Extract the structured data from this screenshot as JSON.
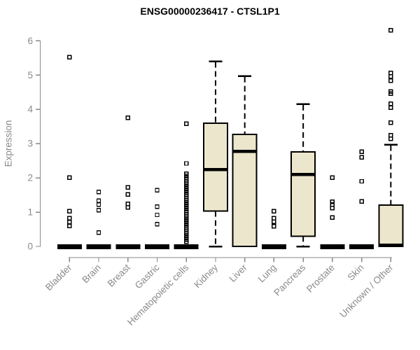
{
  "chart_data": {
    "type": "boxplot",
    "title": "ENSG00000236417 - CTSL1P1",
    "ylabel": "Expression",
    "xlabel": "",
    "ylim": [
      0,
      6
    ],
    "yticks": [
      0,
      1,
      2,
      3,
      4,
      5,
      6
    ],
    "grid": false,
    "legend": false,
    "colors": {
      "box_fill": "#ece6cc",
      "box_stroke": "#000000",
      "axis": "#8a8a8a",
      "tick_label": "#8a8a8a",
      "title": "#000000"
    },
    "categories": [
      "Bladder",
      "Brain",
      "Breast",
      "Gastric",
      "Hematopoietic cells",
      "Kidney",
      "Liver",
      "Lung",
      "Pancreas",
      "Prostate",
      "Skin",
      "Unknown / Other"
    ],
    "series": [
      {
        "name": "Bladder",
        "lo": 0,
        "q1": 0,
        "median": 0,
        "q3": 0,
        "hi": 0,
        "outliers": [
          5.52,
          2.01,
          1.03,
          0.82,
          0.71,
          0.6
        ]
      },
      {
        "name": "Brain",
        "lo": 0,
        "q1": 0,
        "median": 0,
        "q3": 0,
        "hi": 0,
        "outliers": [
          1.59,
          1.33,
          1.22,
          1.06,
          0.4
        ]
      },
      {
        "name": "Breast",
        "lo": 0,
        "q1": 0,
        "median": 0,
        "q3": 0,
        "hi": 0,
        "outliers": [
          3.75,
          1.72,
          1.52,
          1.24,
          1.14
        ]
      },
      {
        "name": "Gastric",
        "lo": 0,
        "q1": 0,
        "median": 0,
        "q3": 0,
        "hi": 0,
        "outliers": [
          1.64,
          1.16,
          0.92,
          0.65
        ]
      },
      {
        "name": "Hematopoietic cells",
        "lo": 0,
        "q1": 0,
        "median": 0,
        "q3": 0,
        "hi": 0,
        "outliers": [
          3.58,
          2.42,
          2.12,
          2.06,
          2.0,
          1.94,
          1.88,
          1.82,
          1.76,
          1.7,
          1.64,
          1.58,
          1.52,
          1.46,
          1.4,
          1.34,
          1.28,
          1.22,
          1.16,
          1.1,
          1.04,
          0.98,
          0.92,
          0.86,
          0.8,
          0.74,
          0.68,
          0.62,
          0.56,
          0.5,
          0.44,
          0.38,
          0.32,
          0.26,
          0.2,
          0.14
        ]
      },
      {
        "name": "Kidney",
        "lo": 0,
        "q1": 1.03,
        "median": 2.25,
        "q3": 3.6,
        "hi": 5.4,
        "outliers": []
      },
      {
        "name": "Liver",
        "lo": 0,
        "q1": 0,
        "median": 2.78,
        "q3": 3.27,
        "hi": 4.97,
        "outliers": []
      },
      {
        "name": "Lung",
        "lo": 0,
        "q1": 0,
        "median": 0,
        "q3": 0,
        "hi": 0,
        "outliers": [
          1.03,
          0.82,
          0.72,
          0.59
        ]
      },
      {
        "name": "Pancreas",
        "lo": 0,
        "q1": 0.3,
        "median": 2.1,
        "q3": 2.76,
        "hi": 4.15,
        "outliers": []
      },
      {
        "name": "Prostate",
        "lo": 0,
        "q1": 0,
        "median": 0,
        "q3": 0,
        "hi": 0,
        "outliers": [
          2.01,
          1.3,
          1.22,
          1.12,
          0.84
        ]
      },
      {
        "name": "Skin",
        "lo": 0,
        "q1": 0,
        "median": 0,
        "q3": 0,
        "hi": 0,
        "outliers": [
          2.76,
          2.6,
          1.9,
          1.31
        ]
      },
      {
        "name": "Unknown / Other",
        "lo": 0,
        "q1": 0,
        "median": 0.04,
        "q3": 1.21,
        "hi": 2.97,
        "outliers": [
          6.31,
          5.06,
          4.96,
          4.84,
          4.52,
          4.46,
          4.16,
          4.05,
          3.61,
          3.24,
          3.14
        ]
      }
    ]
  }
}
